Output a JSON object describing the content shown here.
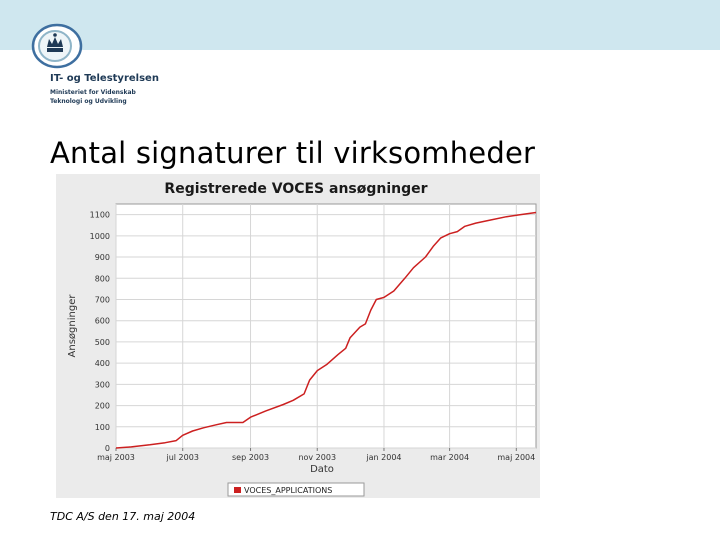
{
  "header": {
    "logo_icon": "crown-shield-icon",
    "org_name": "IT- og Telestyrelsen",
    "org_sub_line1": "Ministeriet for Videnskab",
    "org_sub_line2": "Teknologi og Udvikling",
    "band_color": "#cfe7ef"
  },
  "slide": {
    "title": "Antal signaturer til virksomheder"
  },
  "footer": {
    "note": "TDC A/S den 17. maj 2004"
  },
  "chart_data": {
    "type": "line",
    "title": "Registrerede VOCES ansøgninger",
    "xlabel": "Dato",
    "ylabel": "Ansøgninger",
    "ylim": [
      0,
      1150
    ],
    "xlim": [
      "2003-05-01",
      "2004-05-19"
    ],
    "yticks": [
      0,
      100,
      200,
      300,
      400,
      500,
      600,
      700,
      800,
      900,
      1000,
      1100
    ],
    "xticks": [
      {
        "date": "2003-05-01",
        "label": "maj 2003"
      },
      {
        "date": "2003-07-01",
        "label": "jul 2003"
      },
      {
        "date": "2003-09-01",
        "label": "sep 2003"
      },
      {
        "date": "2003-11-01",
        "label": "nov 2003"
      },
      {
        "date": "2004-01-01",
        "label": "jan 2004"
      },
      {
        "date": "2004-03-01",
        "label": "mar 2004"
      },
      {
        "date": "2004-05-01",
        "label": "maj 2004"
      }
    ],
    "grid": true,
    "legend_position": "bottom",
    "series": [
      {
        "name": "VOCES_APPLICATIONS",
        "color": "#cc2020",
        "points": [
          [
            "2003-05-01",
            0
          ],
          [
            "2003-05-15",
            5
          ],
          [
            "2003-06-01",
            15
          ],
          [
            "2003-06-15",
            25
          ],
          [
            "2003-06-25",
            35
          ],
          [
            "2003-07-01",
            60
          ],
          [
            "2003-07-10",
            80
          ],
          [
            "2003-07-20",
            95
          ],
          [
            "2003-08-01",
            110
          ],
          [
            "2003-08-10",
            120
          ],
          [
            "2003-08-25",
            120
          ],
          [
            "2003-09-01",
            145
          ],
          [
            "2003-09-15",
            175
          ],
          [
            "2003-10-01",
            205
          ],
          [
            "2003-10-10",
            225
          ],
          [
            "2003-10-20",
            255
          ],
          [
            "2003-10-25",
            320
          ],
          [
            "2003-11-01",
            365
          ],
          [
            "2003-11-10",
            395
          ],
          [
            "2003-11-20",
            440
          ],
          [
            "2003-11-27",
            470
          ],
          [
            "2003-12-01",
            520
          ],
          [
            "2003-12-10",
            570
          ],
          [
            "2003-12-15",
            585
          ],
          [
            "2003-12-20",
            650
          ],
          [
            "2003-12-25",
            700
          ],
          [
            "2004-01-01",
            710
          ],
          [
            "2004-01-10",
            740
          ],
          [
            "2004-01-20",
            800
          ],
          [
            "2004-01-28",
            850
          ],
          [
            "2004-02-08",
            900
          ],
          [
            "2004-02-15",
            950
          ],
          [
            "2004-02-22",
            990
          ],
          [
            "2004-03-01",
            1010
          ],
          [
            "2004-03-08",
            1020
          ],
          [
            "2004-03-15",
            1045
          ],
          [
            "2004-03-25",
            1060
          ],
          [
            "2004-04-08",
            1075
          ],
          [
            "2004-04-22",
            1090
          ],
          [
            "2004-05-05",
            1100
          ],
          [
            "2004-05-19",
            1110
          ]
        ]
      }
    ]
  }
}
